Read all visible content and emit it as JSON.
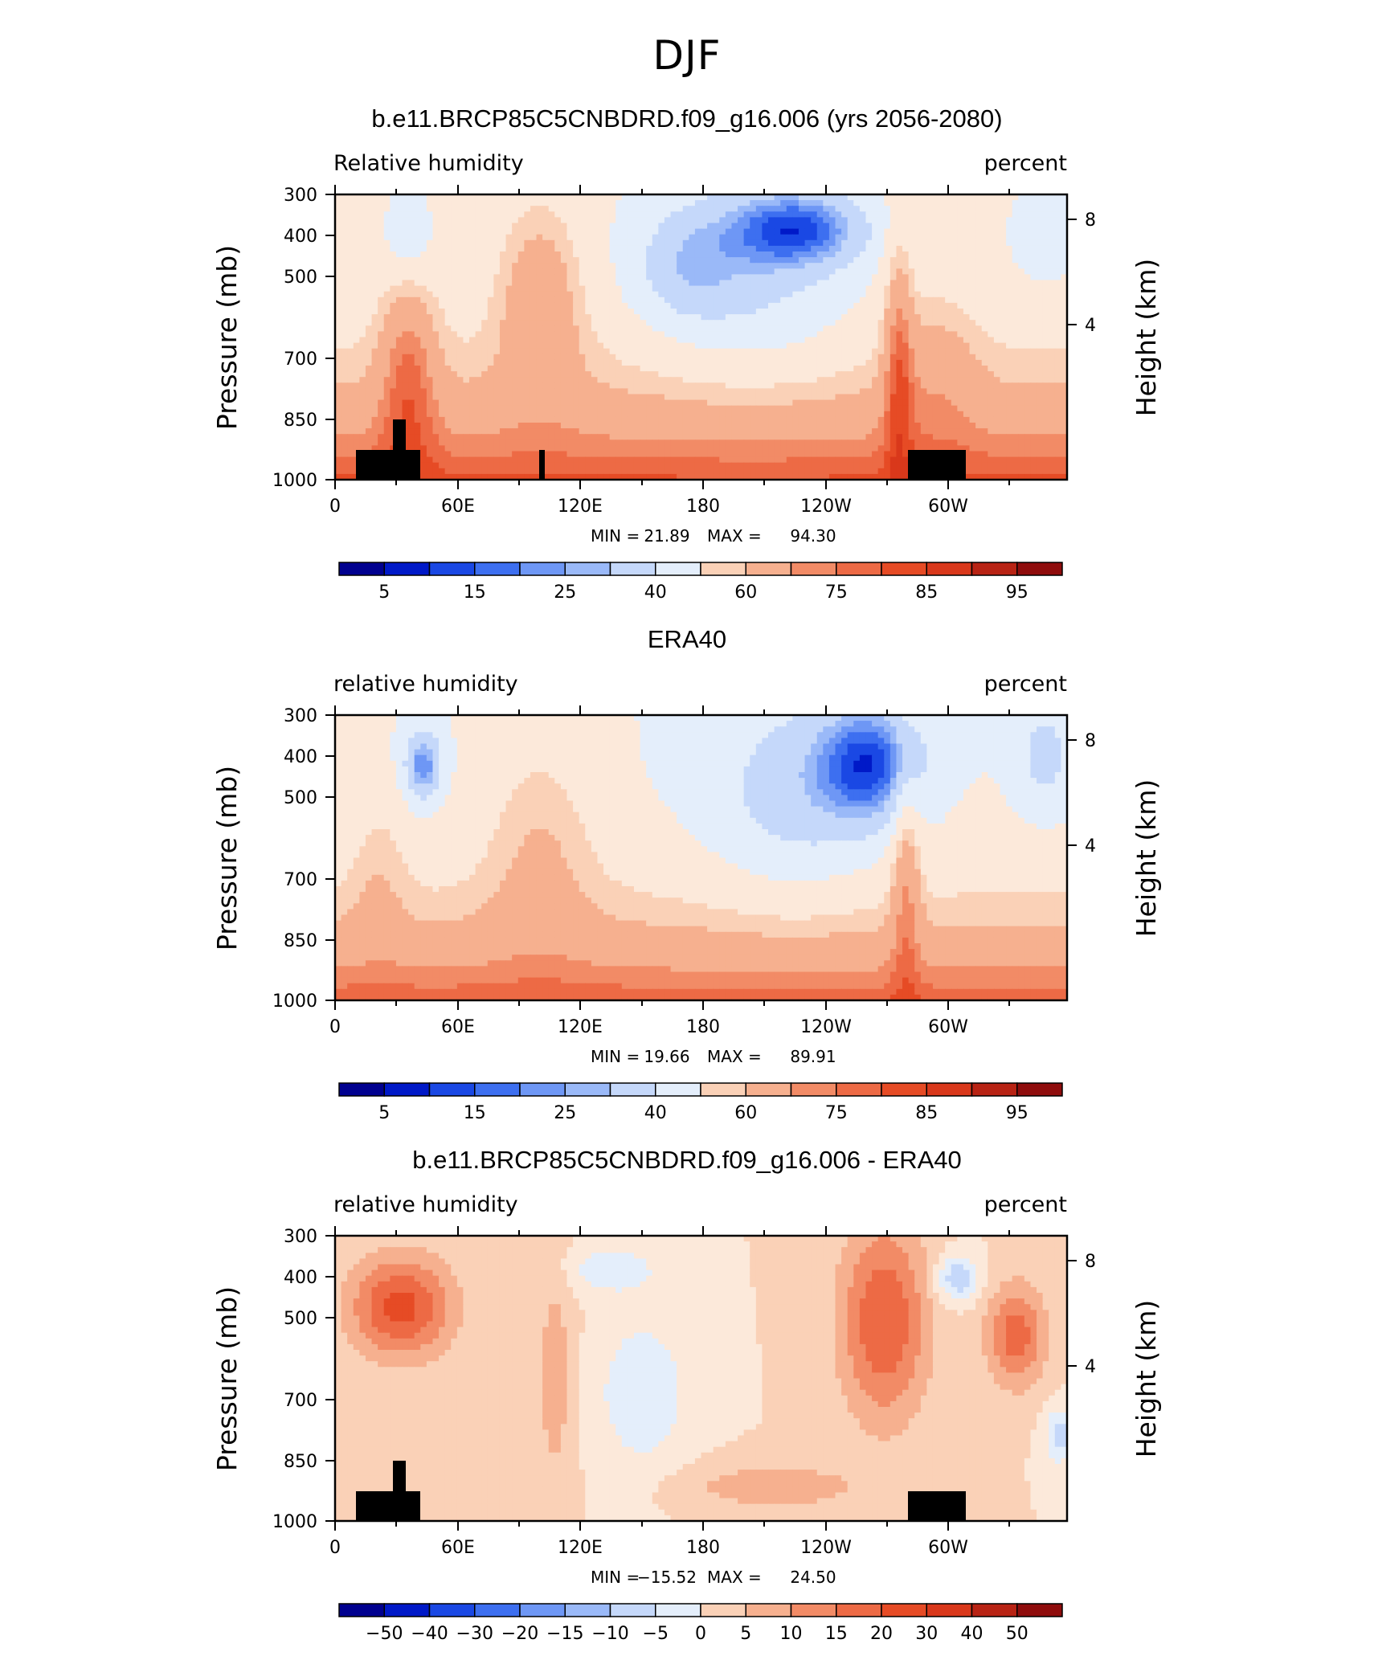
{
  "main_title": "DJF",
  "chart_data": [
    {
      "type": "heatmap",
      "title": "b.e11.BRCP85C5CNBDRD.f09_g16.006 (yrs 2056-2080)",
      "left_label": "Relative humidity",
      "right_label": "percent",
      "ylabel": "Pressure (mb)",
      "y2label": "Height (km)",
      "x_ticks": [
        "0",
        "60E",
        "120E",
        "180",
        "120W",
        "60W"
      ],
      "y_ticks": [
        "300",
        "400",
        "500",
        "700",
        "850",
        "1000"
      ],
      "y2_ticks": [
        "8",
        "4"
      ],
      "stats": {
        "min_label": "MIN =",
        "min": "21.89",
        "max_label": "MAX =",
        "max": "94.30"
      },
      "colorbar_labels": [
        "5",
        "15",
        "25",
        "40",
        "60",
        "75",
        "85",
        "95"
      ],
      "topography": true
    },
    {
      "type": "heatmap",
      "title": "ERA40",
      "left_label": "relative humidity",
      "right_label": "percent",
      "ylabel": "Pressure (mb)",
      "y2label": "Height (km)",
      "x_ticks": [
        "0",
        "60E",
        "120E",
        "180",
        "120W",
        "60W"
      ],
      "y_ticks": [
        "300",
        "400",
        "500",
        "700",
        "850",
        "1000"
      ],
      "y2_ticks": [
        "8",
        "4"
      ],
      "stats": {
        "min_label": "MIN =",
        "min": "19.66",
        "max_label": "MAX =",
        "max": "89.91"
      },
      "colorbar_labels": [
        "5",
        "15",
        "25",
        "40",
        "60",
        "75",
        "85",
        "95"
      ],
      "topography": false
    },
    {
      "type": "heatmap",
      "title": "b.e11.BRCP85C5CNBDRD.f09_g16.006 - ERA40",
      "left_label": "relative humidity",
      "right_label": "percent",
      "ylabel": "Pressure (mb)",
      "y2label": "Height (km)",
      "x_ticks": [
        "0",
        "60E",
        "120E",
        "180",
        "120W",
        "60W"
      ],
      "y_ticks": [
        "300",
        "400",
        "500",
        "700",
        "850",
        "1000"
      ],
      "y2_ticks": [
        "8",
        "4"
      ],
      "stats": {
        "min_label": "MIN =",
        "min": "−15.52",
        "max_label": "MAX =",
        "max": "24.50"
      },
      "colorbar_labels": [
        "−50",
        "−40",
        "−30",
        "−20",
        "−15",
        "−10",
        "−5",
        "0",
        "5",
        "10",
        "15",
        "20",
        "30",
        "40",
        "50"
      ],
      "topography": true
    }
  ],
  "colors": {
    "palette": [
      "#00008f",
      "#0019c8",
      "#1a48e4",
      "#3d6ff0",
      "#6e97f5",
      "#9ab9f8",
      "#c5d8fa",
      "#e4eefb",
      "#fce9da",
      "#fad1b7",
      "#f6b08f",
      "#f28b66",
      "#ed6a45",
      "#e64b25",
      "#d9381b",
      "#b82314",
      "#8f0c0c"
    ],
    "topography": "#000000"
  }
}
